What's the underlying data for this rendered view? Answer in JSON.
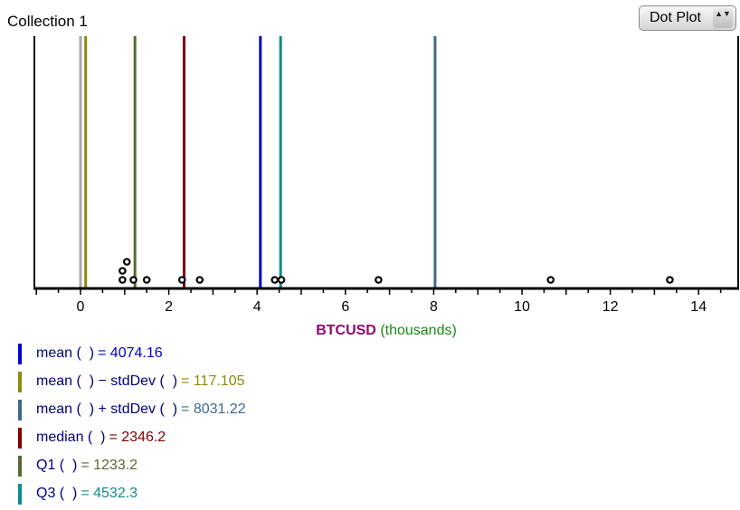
{
  "collection_title": "Collection 1",
  "plot_type_menu": {
    "label": "Dot Plot",
    "arrows": "▲▼"
  },
  "chart_data": {
    "type": "scatter",
    "subtype": "dot-plot",
    "xlabel_attr": "BTCUSD",
    "xlabel_unit": "(thousands)",
    "xlim": [
      -1,
      15
    ],
    "x_ticks": [
      0,
      2,
      4,
      6,
      8,
      10,
      12,
      14
    ],
    "points": [
      {
        "x": 0.95,
        "stack": 0
      },
      {
        "x": 1.2,
        "stack": 0
      },
      {
        "x": 1.5,
        "stack": 0
      },
      {
        "x": 0.95,
        "stack": 1
      },
      {
        "x": 1.05,
        "stack": 2
      },
      {
        "x": 2.3,
        "stack": 0
      },
      {
        "x": 2.7,
        "stack": 0
      },
      {
        "x": 4.4,
        "stack": 0
      },
      {
        "x": 4.55,
        "stack": 0
      },
      {
        "x": 6.75,
        "stack": 0
      },
      {
        "x": 10.65,
        "stack": 0
      },
      {
        "x": 13.35,
        "stack": 0
      }
    ],
    "reference_lines": [
      {
        "label": "mean ( ) − stdDev ( )",
        "x": 0.117105,
        "color": "#8b8b0b"
      },
      {
        "label": "Q1 ( )",
        "x": 1.2332,
        "color": "#556b2f"
      },
      {
        "label": "median ( )",
        "x": 2.3462,
        "color": "#7f0000"
      },
      {
        "label": "mean ( )",
        "x": 4.07416,
        "color": "#0000cd"
      },
      {
        "label": "Q3 ( )",
        "x": 4.5323,
        "color": "#108b8b"
      },
      {
        "label": "mean ( ) + stdDev ( )",
        "x": 8.03122,
        "color": "#3d6b8f"
      },
      {
        "label": "",
        "x": 0.0,
        "color": "#a9a9a9"
      }
    ]
  },
  "legend": [
    {
      "formula": "mean (  )",
      "value": "= 4074.16",
      "color": "#0000cd",
      "formula_color": "#000080",
      "value_color": "#0000cd"
    },
    {
      "formula": "mean (  ) − stdDev (  )",
      "value": "= 117.105",
      "color": "#8b8b0b",
      "formula_color": "#000080",
      "value_color": "#8b8b0b"
    },
    {
      "formula": "mean (  ) + stdDev (  )",
      "value": "= 8031.22",
      "color": "#3d6b8f",
      "formula_color": "#000080",
      "value_color": "#3d6b8f"
    },
    {
      "formula": "median (  )",
      "value": "= 2346.2",
      "color": "#7f0000",
      "formula_color": "#000080",
      "value_color": "#7f0000"
    },
    {
      "formula": "Q1 (  )",
      "value": "= 1233.2",
      "color": "#556b2f",
      "formula_color": "#000080",
      "value_color": "#556b2f"
    },
    {
      "formula": "Q3 (  )",
      "value": "= 4532.3",
      "color": "#108b8b",
      "formula_color": "#000080",
      "value_color": "#108b8b"
    }
  ],
  "colors": {
    "attr": "#8b0a6f",
    "unit": "#1a8a1a",
    "axis": "#000000"
  }
}
